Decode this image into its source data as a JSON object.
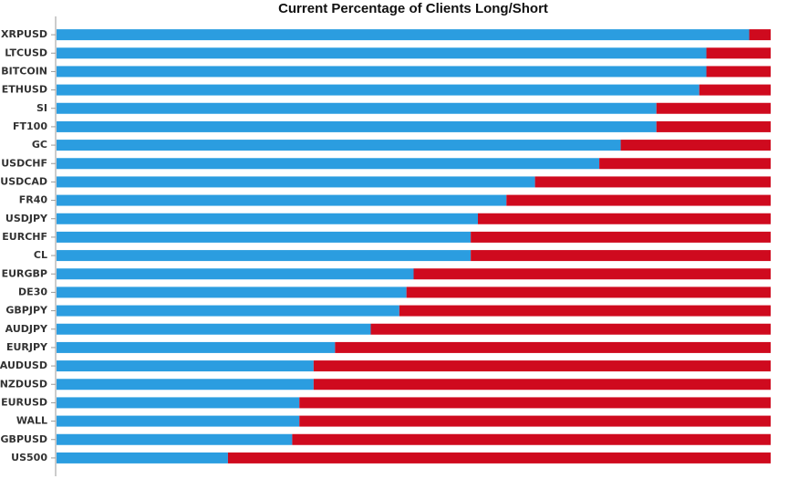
{
  "chart_data": {
    "type": "stacked_bar_horizontal",
    "title": "Current Percentage of Clients Long/Short",
    "categories": [
      "XRPUSD",
      "LTCUSD",
      "BITCOIN",
      "ETHUSD",
      "SI",
      "FT100",
      "GC",
      "USDCHF",
      "USDCAD",
      "FR40",
      "USDJPY",
      "EURCHF",
      "CL",
      "EURGBP",
      "DE30",
      "GBPJPY",
      "AUDJPY",
      "EURJPY",
      "AUDUSD",
      "NZDUSD",
      "EURUSD",
      "WALL",
      "GBPUSD",
      "US500"
    ],
    "series": [
      {
        "color": "#2b9de0",
        "values": [
          97,
          91,
          91,
          90,
          84,
          84,
          79,
          76,
          67,
          63,
          59,
          58,
          58,
          50,
          49,
          48,
          44,
          39,
          36,
          36,
          34,
          34,
          33,
          24
        ]
      },
      {
        "color": "#cf0a1e",
        "values": [
          3,
          9,
          9,
          10,
          16,
          16,
          21,
          24,
          33,
          37,
          41,
          42,
          42,
          50,
          51,
          52,
          56,
          61,
          64,
          64,
          66,
          66,
          67,
          76
        ]
      }
    ],
    "xlim": [
      0,
      100
    ]
  }
}
